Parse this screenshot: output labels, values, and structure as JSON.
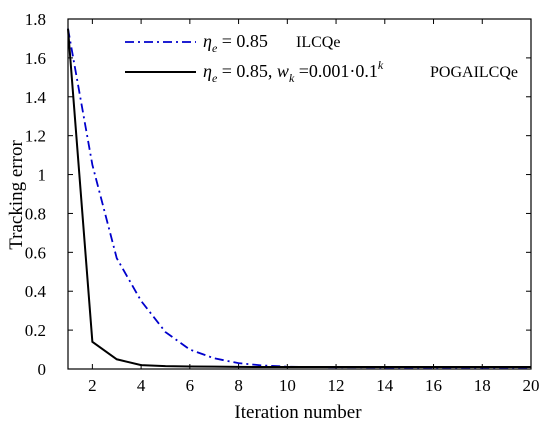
{
  "chart_data": {
    "type": "line",
    "title": "",
    "xlabel": "Iteration number",
    "ylabel": "Tracking error",
    "xlim": [
      1,
      20
    ],
    "ylim": [
      0,
      1.8
    ],
    "xticks": [
      2,
      4,
      6,
      8,
      10,
      12,
      14,
      16,
      18,
      20
    ],
    "yticks": [
      0,
      0.2,
      0.4,
      0.6,
      0.8,
      1,
      1.2,
      1.4,
      1.6,
      1.8
    ],
    "xtick_labels": [
      "2",
      "4",
      "6",
      "8",
      "10",
      "12",
      "14",
      "16",
      "18",
      "20"
    ],
    "ytick_labels": [
      "0",
      "0.2",
      "0.4",
      "0.6",
      "0.8",
      "1",
      "1.2",
      "1.4",
      "1.6",
      "1.8"
    ],
    "grid": false,
    "legend_position": "top",
    "x": [
      1,
      2,
      3,
      4,
      5,
      6,
      7,
      8,
      9,
      10,
      11,
      12,
      13,
      14,
      15,
      16,
      17,
      18,
      19,
      20
    ],
    "series": [
      {
        "name": "ILCQe",
        "legend_math": "η_e = 0.85",
        "color": "#0000cc",
        "style": "dash-dot",
        "values": [
          1.75,
          1.05,
          0.57,
          0.35,
          0.19,
          0.1,
          0.055,
          0.03,
          0.018,
          0.012,
          0.01,
          0.009,
          0.009,
          0.008,
          0.008,
          0.008,
          0.008,
          0.008,
          0.008,
          0.008
        ]
      },
      {
        "name": "POGAILCQe",
        "legend_math": "η_e = 0.85, w_k = 0.001·0.1^k",
        "color": "#000000",
        "style": "solid",
        "values": [
          1.75,
          0.14,
          0.05,
          0.02,
          0.015,
          0.013,
          0.012,
          0.011,
          0.01,
          0.01,
          0.01,
          0.01,
          0.01,
          0.01,
          0.01,
          0.01,
          0.01,
          0.01,
          0.01,
          0.01
        ]
      }
    ]
  }
}
